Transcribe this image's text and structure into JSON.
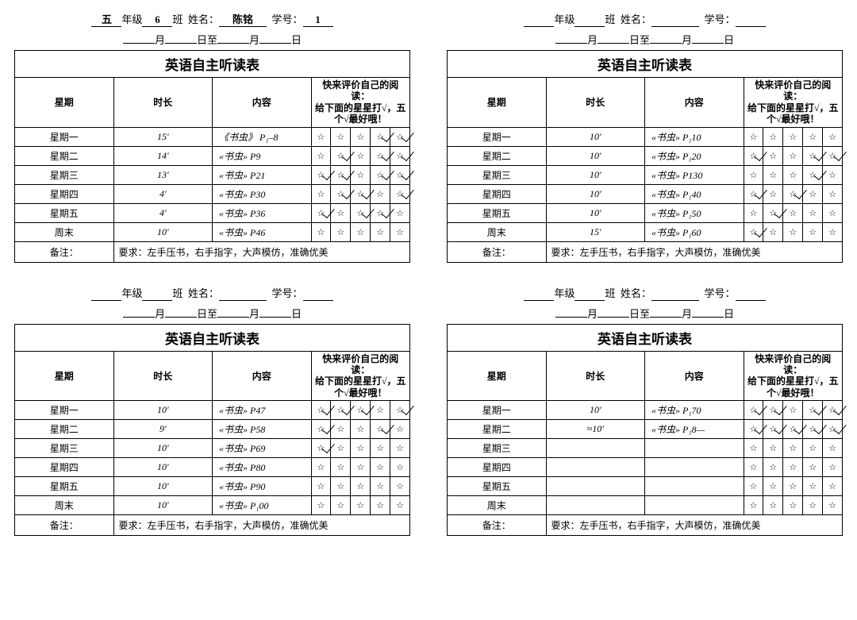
{
  "labels": {
    "grade": "年级",
    "class": "班",
    "name": "姓名：",
    "number": "学号：",
    "month": "月",
    "day_from": "日至",
    "day": "日",
    "title": "英语自主听读表",
    "col_day": "星期",
    "col_duration": "时长",
    "col_content": "内容",
    "rating_line1": "快来评价自己的阅读：",
    "rating_line2": "给下面的星星打√，五个√最好哦！",
    "note_label": "备注：",
    "note_text": "要求：左手压书，右手指字，大声模仿，准确优美",
    "days": [
      "星期一",
      "星期二",
      "星期三",
      "星期四",
      "星期五",
      "周末"
    ],
    "star": "☆"
  },
  "forms": [
    {
      "header": {
        "grade_prefix": "五",
        "class": "6",
        "name": "陈铭",
        "number": "1"
      },
      "rows": [
        {
          "duration": "15'",
          "content": "《书虫》 P₁–8",
          "checks": [
            0,
            0,
            0,
            1,
            1
          ]
        },
        {
          "duration": "14'",
          "content": "«书虫» P9",
          "checks": [
            0,
            1,
            0,
            1,
            1
          ]
        },
        {
          "duration": "13'",
          "content": "«书虫» P21",
          "checks": [
            1,
            1,
            0,
            1,
            1
          ]
        },
        {
          "duration": "4'",
          "content": "«书虫» P30",
          "checks": [
            0,
            1,
            1,
            0,
            1
          ]
        },
        {
          "duration": "4'",
          "content": "«书虫» P36",
          "checks": [
            1,
            0,
            1,
            1,
            0
          ]
        },
        {
          "duration": "10'",
          "content": "«书虫» P46",
          "checks": [
            0,
            0,
            0,
            0,
            0
          ]
        }
      ]
    },
    {
      "header": {
        "grade_prefix": "",
        "class": "",
        "name": "",
        "number": ""
      },
      "rows": [
        {
          "duration": "10'",
          "content": "«书虫» P₁10",
          "checks": [
            0,
            0,
            0,
            0,
            0
          ]
        },
        {
          "duration": "10'",
          "content": "«书虫» P₁20",
          "checks": [
            1,
            0,
            0,
            1,
            1
          ]
        },
        {
          "duration": "10'",
          "content": "«书虫» P130",
          "checks": [
            0,
            0,
            0,
            1,
            0
          ]
        },
        {
          "duration": "10'",
          "content": "«书虫» P₁40",
          "checks": [
            1,
            0,
            1,
            0,
            0
          ]
        },
        {
          "duration": "10'",
          "content": "«书虫» P₁50",
          "checks": [
            0,
            1,
            0,
            0,
            0
          ]
        },
        {
          "duration": "15'",
          "content": "«书虫» P₁60",
          "checks": [
            1,
            0,
            0,
            0,
            0
          ]
        }
      ]
    },
    {
      "header": {
        "grade_prefix": "",
        "class": "",
        "name": "",
        "number": ""
      },
      "rows": [
        {
          "duration": "10'",
          "content": "«书虫» P47",
          "checks": [
            1,
            1,
            1,
            0,
            1
          ]
        },
        {
          "duration": "9'",
          "content": "«书虫» P58",
          "checks": [
            1,
            0,
            0,
            1,
            0
          ]
        },
        {
          "duration": "10'",
          "content": "«书虫» P69",
          "checks": [
            1,
            0,
            0,
            0,
            0
          ]
        },
        {
          "duration": "10'",
          "content": "«书虫» P80",
          "checks": [
            0,
            0,
            0,
            0,
            0
          ]
        },
        {
          "duration": "10'",
          "content": "«书虫» P90",
          "checks": [
            0,
            0,
            0,
            0,
            0
          ]
        },
        {
          "duration": "10'",
          "content": "«书虫» P₁00",
          "checks": [
            0,
            0,
            0,
            0,
            0
          ]
        }
      ]
    },
    {
      "header": {
        "grade_prefix": "",
        "class": "",
        "name": "",
        "number": ""
      },
      "rows": [
        {
          "duration": "10'",
          "content": "«书虫» P₁70",
          "checks": [
            1,
            1,
            0,
            1,
            1
          ]
        },
        {
          "duration": "≈10'",
          "content": "«书虫» P₁8—",
          "checks": [
            1,
            1,
            1,
            1,
            1
          ]
        },
        {
          "duration": "",
          "content": "",
          "checks": [
            0,
            0,
            0,
            0,
            0
          ]
        },
        {
          "duration": "",
          "content": "",
          "checks": [
            0,
            0,
            0,
            0,
            0
          ]
        },
        {
          "duration": "",
          "content": "",
          "checks": [
            0,
            0,
            0,
            0,
            0
          ]
        },
        {
          "duration": "",
          "content": "",
          "checks": [
            0,
            0,
            0,
            0,
            0
          ]
        }
      ]
    }
  ]
}
